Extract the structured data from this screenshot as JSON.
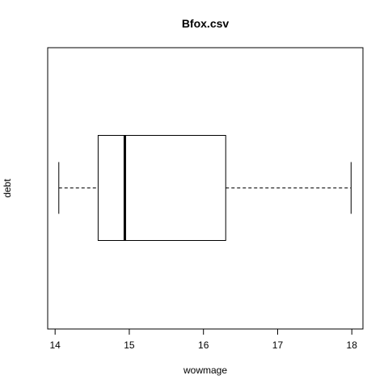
{
  "chart_data": {
    "type": "boxplot",
    "orientation": "horizontal",
    "title": "Bfox.csv",
    "xlabel": "wowmage",
    "ylabel": "debt",
    "xlim": [
      13.9,
      18.15
    ],
    "xticks": [
      {
        "value": 14,
        "label": "14"
      },
      {
        "value": 15,
        "label": "15"
      },
      {
        "value": 16,
        "label": "16"
      },
      {
        "value": 17,
        "label": "17"
      },
      {
        "value": 18,
        "label": "18"
      }
    ],
    "stats": {
      "min": 14.05,
      "q1": 14.58,
      "median": 14.94,
      "q3": 16.3,
      "max": 17.99
    },
    "grid": false,
    "legend": false
  }
}
